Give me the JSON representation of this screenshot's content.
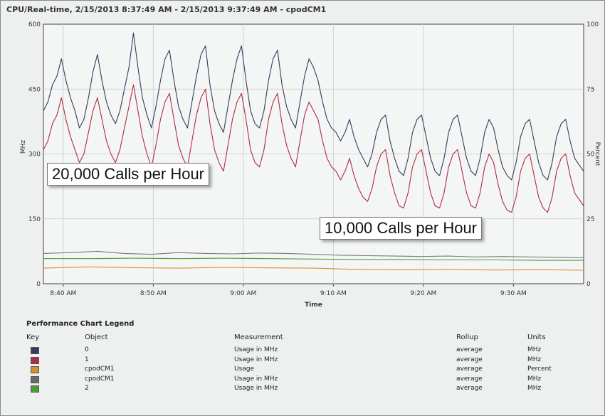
{
  "chart_data": {
    "type": "line",
    "title": "CPU/Real-time, 2/15/2013 8:37:49 AM - 2/15/2013 9:37:49 AM - cpodCM1",
    "xlabel": "Time",
    "ylabel_left": "MHz",
    "ylabel_right": "Percent",
    "ylim_left": [
      0,
      600
    ],
    "ylim_right": [
      0,
      100
    ],
    "yticks_left": [
      "600",
      "450",
      "300",
      "150",
      "0"
    ],
    "yticks_right": [
      "100",
      "75",
      "50",
      "25",
      "0"
    ],
    "x_start_min": 0,
    "x_end_min": 60,
    "xticks": [
      {
        "label": "8:40 AM",
        "min": 2.2
      },
      {
        "label": "8:50 AM",
        "min": 12.2
      },
      {
        "label": "9:00 AM",
        "min": 22.2
      },
      {
        "label": "9:10 AM",
        "min": 32.2
      },
      {
        "label": "9:20 AM",
        "min": 42.2
      },
      {
        "label": "9:30 AM",
        "min": 52.2
      }
    ],
    "grid": true,
    "annotations": [
      "20,000 Calls per Hour",
      "10,000 Calls per Hour"
    ],
    "series": [
      {
        "name": "0",
        "color": "#3a3a5e",
        "axis": "left",
        "points": [
          [
            0,
            400
          ],
          [
            0.5,
            420
          ],
          [
            1,
            460
          ],
          [
            1.5,
            480
          ],
          [
            2,
            520
          ],
          [
            2.5,
            470
          ],
          [
            3,
            430
          ],
          [
            3.5,
            400
          ],
          [
            4,
            360
          ],
          [
            4.5,
            380
          ],
          [
            5,
            430
          ],
          [
            5.5,
            490
          ],
          [
            6,
            530
          ],
          [
            6.5,
            470
          ],
          [
            7,
            420
          ],
          [
            7.5,
            390
          ],
          [
            8,
            370
          ],
          [
            8.5,
            400
          ],
          [
            9,
            450
          ],
          [
            9.5,
            500
          ],
          [
            10,
            580
          ],
          [
            10.5,
            500
          ],
          [
            11,
            430
          ],
          [
            11.5,
            390
          ],
          [
            12,
            360
          ],
          [
            12.5,
            410
          ],
          [
            13,
            470
          ],
          [
            13.5,
            520
          ],
          [
            14,
            540
          ],
          [
            14.5,
            470
          ],
          [
            15,
            410
          ],
          [
            15.5,
            380
          ],
          [
            16,
            360
          ],
          [
            16.5,
            420
          ],
          [
            17,
            480
          ],
          [
            17.5,
            530
          ],
          [
            18,
            550
          ],
          [
            18.5,
            460
          ],
          [
            19,
            400
          ],
          [
            19.5,
            370
          ],
          [
            20,
            350
          ],
          [
            20.5,
            410
          ],
          [
            21,
            470
          ],
          [
            21.5,
            520
          ],
          [
            22,
            550
          ],
          [
            22.5,
            470
          ],
          [
            23,
            400
          ],
          [
            23.5,
            370
          ],
          [
            24,
            360
          ],
          [
            24.5,
            400
          ],
          [
            25,
            470
          ],
          [
            25.5,
            520
          ],
          [
            26,
            540
          ],
          [
            26.5,
            460
          ],
          [
            27,
            410
          ],
          [
            27.5,
            380
          ],
          [
            28,
            360
          ],
          [
            28.5,
            420
          ],
          [
            29,
            480
          ],
          [
            29.5,
            520
          ],
          [
            30,
            500
          ],
          [
            30.5,
            470
          ],
          [
            31,
            420
          ],
          [
            31.5,
            380
          ],
          [
            32,
            360
          ],
          [
            32.5,
            350
          ],
          [
            33,
            330
          ],
          [
            33.5,
            350
          ],
          [
            34,
            380
          ],
          [
            34.5,
            340
          ],
          [
            35,
            310
          ],
          [
            35.5,
            290
          ],
          [
            36,
            270
          ],
          [
            36.5,
            300
          ],
          [
            37,
            350
          ],
          [
            37.5,
            380
          ],
          [
            38,
            390
          ],
          [
            38.5,
            330
          ],
          [
            39,
            290
          ],
          [
            39.5,
            260
          ],
          [
            40,
            250
          ],
          [
            40.5,
            290
          ],
          [
            41,
            350
          ],
          [
            41.5,
            380
          ],
          [
            42,
            390
          ],
          [
            42.5,
            340
          ],
          [
            43,
            290
          ],
          [
            43.5,
            260
          ],
          [
            44,
            250
          ],
          [
            44.5,
            290
          ],
          [
            45,
            350
          ],
          [
            45.5,
            380
          ],
          [
            46,
            390
          ],
          [
            46.5,
            340
          ],
          [
            47,
            290
          ],
          [
            47.5,
            260
          ],
          [
            48,
            250
          ],
          [
            48.5,
            290
          ],
          [
            49,
            350
          ],
          [
            49.5,
            380
          ],
          [
            50,
            360
          ],
          [
            50.5,
            310
          ],
          [
            51,
            270
          ],
          [
            51.5,
            250
          ],
          [
            52,
            240
          ],
          [
            52.5,
            280
          ],
          [
            53,
            340
          ],
          [
            53.5,
            370
          ],
          [
            54,
            380
          ],
          [
            54.5,
            330
          ],
          [
            55,
            280
          ],
          [
            55.5,
            250
          ],
          [
            56,
            240
          ],
          [
            56.5,
            280
          ],
          [
            57,
            340
          ],
          [
            57.5,
            370
          ],
          [
            58,
            380
          ],
          [
            58.5,
            330
          ],
          [
            59,
            290
          ],
          [
            60,
            260
          ]
        ]
      },
      {
        "name": "1",
        "color": "#b02a4a",
        "axis": "left",
        "points": [
          [
            0,
            310
          ],
          [
            0.5,
            330
          ],
          [
            1,
            370
          ],
          [
            1.5,
            390
          ],
          [
            2,
            430
          ],
          [
            2.5,
            380
          ],
          [
            3,
            340
          ],
          [
            3.5,
            310
          ],
          [
            4,
            280
          ],
          [
            4.5,
            300
          ],
          [
            5,
            350
          ],
          [
            5.5,
            400
          ],
          [
            6,
            430
          ],
          [
            6.5,
            380
          ],
          [
            7,
            330
          ],
          [
            7.5,
            300
          ],
          [
            8,
            280
          ],
          [
            8.5,
            310
          ],
          [
            9,
            360
          ],
          [
            9.5,
            410
          ],
          [
            10,
            460
          ],
          [
            10.5,
            400
          ],
          [
            11,
            340
          ],
          [
            11.5,
            300
          ],
          [
            12,
            270
          ],
          [
            12.5,
            320
          ],
          [
            13,
            380
          ],
          [
            13.5,
            420
          ],
          [
            14,
            440
          ],
          [
            14.5,
            380
          ],
          [
            15,
            320
          ],
          [
            15.5,
            290
          ],
          [
            16,
            270
          ],
          [
            16.5,
            330
          ],
          [
            17,
            390
          ],
          [
            17.5,
            430
          ],
          [
            18,
            450
          ],
          [
            18.5,
            370
          ],
          [
            19,
            310
          ],
          [
            19.5,
            280
          ],
          [
            20,
            260
          ],
          [
            20.5,
            320
          ],
          [
            21,
            380
          ],
          [
            21.5,
            420
          ],
          [
            22,
            440
          ],
          [
            22.5,
            380
          ],
          [
            23,
            310
          ],
          [
            23.5,
            280
          ],
          [
            24,
            270
          ],
          [
            24.5,
            310
          ],
          [
            25,
            380
          ],
          [
            25.5,
            420
          ],
          [
            26,
            440
          ],
          [
            26.5,
            370
          ],
          [
            27,
            320
          ],
          [
            27.5,
            290
          ],
          [
            28,
            270
          ],
          [
            28.5,
            330
          ],
          [
            29,
            390
          ],
          [
            29.5,
            420
          ],
          [
            30,
            400
          ],
          [
            30.5,
            380
          ],
          [
            31,
            330
          ],
          [
            31.5,
            290
          ],
          [
            32,
            270
          ],
          [
            32.5,
            260
          ],
          [
            33,
            240
          ],
          [
            33.5,
            260
          ],
          [
            34,
            290
          ],
          [
            34.5,
            250
          ],
          [
            35,
            220
          ],
          [
            35.5,
            200
          ],
          [
            36,
            190
          ],
          [
            36.5,
            220
          ],
          [
            37,
            270
          ],
          [
            37.5,
            300
          ],
          [
            38,
            310
          ],
          [
            38.5,
            250
          ],
          [
            39,
            210
          ],
          [
            39.5,
            180
          ],
          [
            40,
            175
          ],
          [
            40.5,
            210
          ],
          [
            41,
            270
          ],
          [
            41.5,
            300
          ],
          [
            42,
            310
          ],
          [
            42.5,
            260
          ],
          [
            43,
            210
          ],
          [
            43.5,
            180
          ],
          [
            44,
            175
          ],
          [
            44.5,
            210
          ],
          [
            45,
            270
          ],
          [
            45.5,
            300
          ],
          [
            46,
            310
          ],
          [
            46.5,
            260
          ],
          [
            47,
            210
          ],
          [
            47.5,
            180
          ],
          [
            48,
            175
          ],
          [
            48.5,
            210
          ],
          [
            49,
            270
          ],
          [
            49.5,
            300
          ],
          [
            50,
            280
          ],
          [
            50.5,
            230
          ],
          [
            51,
            190
          ],
          [
            51.5,
            170
          ],
          [
            52,
            165
          ],
          [
            52.5,
            200
          ],
          [
            53,
            260
          ],
          [
            53.5,
            290
          ],
          [
            54,
            300
          ],
          [
            54.5,
            250
          ],
          [
            55,
            200
          ],
          [
            55.5,
            175
          ],
          [
            56,
            165
          ],
          [
            56.5,
            200
          ],
          [
            57,
            260
          ],
          [
            57.5,
            290
          ],
          [
            58,
            300
          ],
          [
            58.5,
            250
          ],
          [
            59,
            210
          ],
          [
            60,
            180
          ]
        ]
      },
      {
        "name": "cpodCM1",
        "color": "#d9902a",
        "axis": "right",
        "points": [
          [
            0,
            6
          ],
          [
            5,
            6.5
          ],
          [
            10,
            6.2
          ],
          [
            15,
            6
          ],
          [
            20,
            6.3
          ],
          [
            25,
            6.1
          ],
          [
            30,
            6
          ],
          [
            35,
            5.5
          ],
          [
            40,
            5.4
          ],
          [
            45,
            5.5
          ],
          [
            50,
            5.3
          ],
          [
            55,
            5.4
          ],
          [
            60,
            5.2
          ]
        ]
      },
      {
        "name": "cpodCM1",
        "color": "#7a7a7a",
        "axis": "left",
        "points": [
          [
            0,
            70
          ],
          [
            3,
            72
          ],
          [
            6,
            75
          ],
          [
            9,
            70
          ],
          [
            12,
            68
          ],
          [
            15,
            72
          ],
          [
            18,
            70
          ],
          [
            21,
            69
          ],
          [
            24,
            71
          ],
          [
            27,
            70
          ],
          [
            30,
            68
          ],
          [
            33,
            66
          ],
          [
            36,
            65
          ],
          [
            39,
            64
          ],
          [
            42,
            63
          ],
          [
            45,
            64
          ],
          [
            48,
            62
          ],
          [
            51,
            63
          ],
          [
            54,
            62
          ],
          [
            57,
            61
          ],
          [
            60,
            60
          ]
        ]
      },
      {
        "name": "2",
        "color": "#4e9a3a",
        "axis": "left",
        "points": [
          [
            0,
            58
          ],
          [
            5,
            58
          ],
          [
            10,
            59
          ],
          [
            15,
            58
          ],
          [
            20,
            59
          ],
          [
            25,
            58
          ],
          [
            30,
            57
          ],
          [
            35,
            56
          ],
          [
            40,
            56
          ],
          [
            45,
            55
          ],
          [
            50,
            55
          ],
          [
            55,
            54
          ],
          [
            60,
            54
          ]
        ]
      }
    ]
  },
  "legend": {
    "title": "Performance Chart Legend",
    "headers": {
      "key": "Key",
      "object": "Object",
      "measurement": "Measurement",
      "rollup": "Rollup",
      "units": "Units"
    },
    "rows": [
      {
        "color": "#3a3a5e",
        "object": "0",
        "measurement": "Usage in MHz",
        "rollup": "average",
        "units": "MHz"
      },
      {
        "color": "#b02a4a",
        "object": "1",
        "measurement": "Usage in MHz",
        "rollup": "average",
        "units": "MHz"
      },
      {
        "color": "#d9902a",
        "object": "cpodCM1",
        "measurement": "Usage",
        "rollup": "average",
        "units": "Percent"
      },
      {
        "color": "#6a6a6a",
        "object": "cpodCM1",
        "measurement": "Usage in MHz",
        "rollup": "average",
        "units": "MHz"
      },
      {
        "color": "#4e9a3a",
        "object": "2",
        "measurement": "Usage in MHz",
        "rollup": "average",
        "units": "MHz"
      }
    ]
  }
}
